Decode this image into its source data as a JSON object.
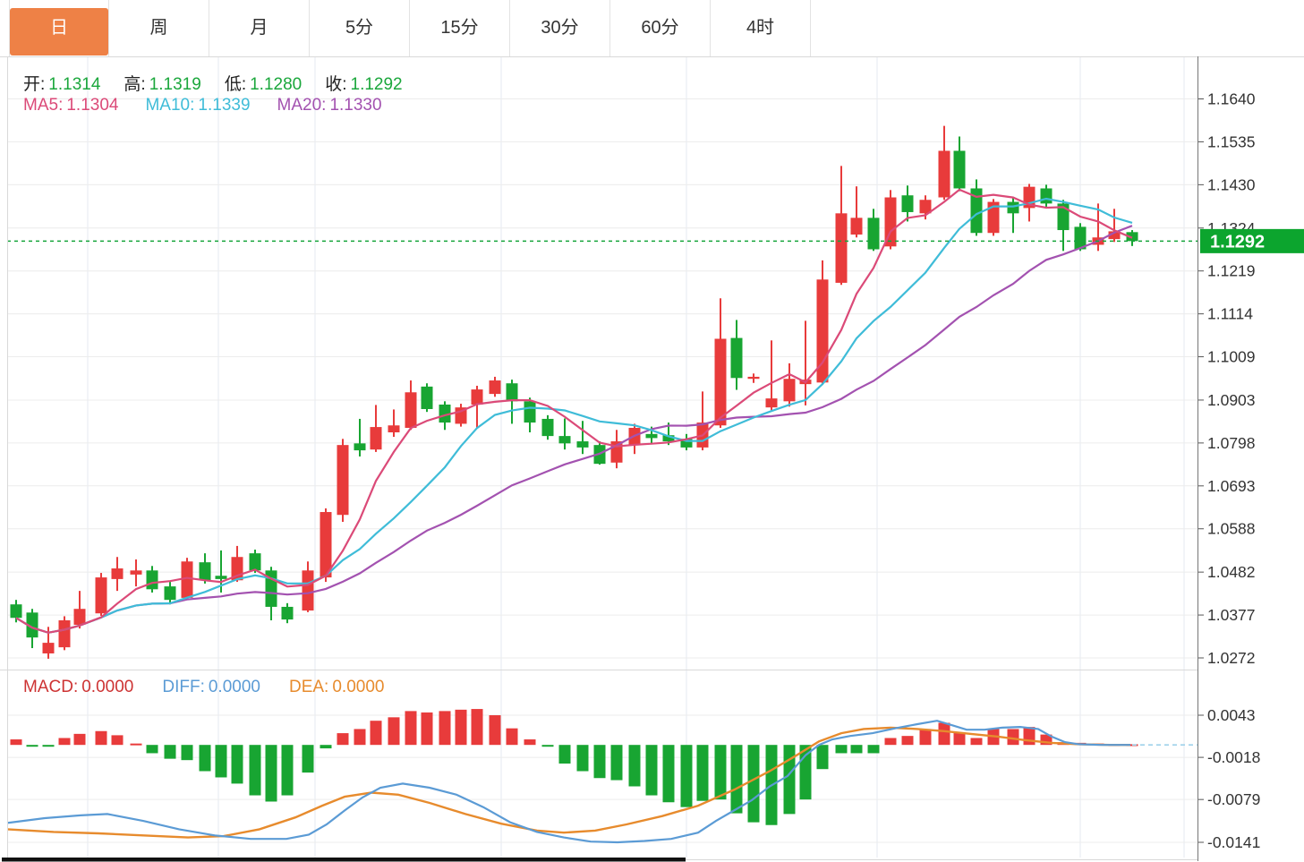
{
  "tabs": {
    "items": [
      {
        "name": "day",
        "label": "日",
        "active": true
      },
      {
        "name": "week",
        "label": "周",
        "active": false
      },
      {
        "name": "month",
        "label": "月",
        "active": false
      },
      {
        "name": "5min",
        "label": "5分",
        "active": false
      },
      {
        "name": "15min",
        "label": "15分",
        "active": false
      },
      {
        "name": "30min",
        "label": "30分",
        "active": false
      },
      {
        "name": "60min",
        "label": "60分",
        "active": false
      },
      {
        "name": "4hour",
        "label": "4时",
        "active": false
      }
    ]
  },
  "ohlc_bar": {
    "open_label": "开:",
    "open": "1.1314",
    "high_label": "高:",
    "high": "1.1319",
    "low_label": "低:",
    "low": "1.1280",
    "close_label": "收:",
    "close": "1.1292"
  },
  "ma_bar": {
    "ma5_label": "MA5:",
    "ma5": "1.1304",
    "ma10_label": "MA10:",
    "ma10": "1.1339",
    "ma20_label": "MA20:",
    "ma20": "1.1330"
  },
  "macd_bar": {
    "macd_label": "MACD:",
    "macd": "0.0000",
    "diff_label": "DIFF:",
    "diff": "0.0000",
    "dea_label": "DEA:",
    "dea": "0.0000"
  },
  "price_axis": {
    "ticks": [
      "1.1640",
      "1.1535",
      "1.1430",
      "1.1324",
      "1.1219",
      "1.1114",
      "1.1009",
      "1.0903",
      "1.0798",
      "1.0693",
      "1.0588",
      "1.0482",
      "1.0377",
      "1.0272"
    ],
    "current_price": "1.1292"
  },
  "macd_axis": {
    "ticks": [
      "0.0043",
      "-0.0018",
      "-0.0079",
      "-0.0141"
    ]
  },
  "colors": {
    "up": "#e83b3b",
    "down": "#18a532",
    "ma5": "#db4a78",
    "ma10": "#3fbcd8",
    "ma20": "#a352b0",
    "diff": "#5b9bd5",
    "dea": "#e78b2d",
    "price_line": "#15a43a",
    "price_tag_bg": "#0ca52e",
    "tab_active_bg": "#ee8146",
    "ohlc_value": "#1ba73c",
    "macd_label": "#cd3333",
    "axis_text": "#333333",
    "grid": "#ececec",
    "vgrid": "#e6eaf1",
    "border": "#d9d9d9",
    "axis_line": "#777777",
    "scroll_thumb": "#111111"
  },
  "chart_data": {
    "type": "candlestick+macd",
    "title": "",
    "price_range": [
      1.0272,
      1.164
    ],
    "price_ticks": [
      1.164,
      1.1535,
      1.143,
      1.1324,
      1.1219,
      1.1114,
      1.1009,
      1.0903,
      1.0798,
      1.0693,
      1.0588,
      1.0482,
      1.0377,
      1.0272
    ],
    "macd_ticks": [
      0.0043,
      -0.0018,
      -0.0079,
      -0.0141
    ],
    "current_price": 1.1292,
    "last_bar": {
      "open": 1.1314,
      "high": 1.1319,
      "low": 1.128,
      "close": 1.1292
    },
    "ma_display": {
      "ma5": 1.1304,
      "ma10": 1.1339,
      "ma20": 1.133
    },
    "ma_periods": [
      5,
      10,
      20
    ],
    "vertical_gridlines": [
      98,
      244,
      352,
      560,
      767,
      980,
      1207,
      1323
    ],
    "candles": [
      [
        18,
        1.0403,
        1.0414,
        1.0359,
        1.037
      ],
      [
        36,
        1.0383,
        1.0392,
        1.0296,
        1.0322
      ],
      [
        54,
        1.0283,
        1.0348,
        1.027,
        1.0309
      ],
      [
        72,
        1.0298,
        1.0374,
        1.0291,
        1.0364
      ],
      [
        89,
        1.0353,
        1.0436,
        1.0344,
        1.0392
      ],
      [
        113,
        1.0381,
        1.048,
        1.0375,
        1.0469
      ],
      [
        131,
        1.0465,
        1.0519,
        1.0436,
        1.0491
      ],
      [
        152,
        1.0476,
        1.0513,
        1.0447,
        1.0486
      ],
      [
        170,
        1.0486,
        1.0497,
        1.0432,
        1.044
      ],
      [
        190,
        1.0447,
        1.0458,
        1.0403,
        1.0414
      ],
      [
        209,
        1.0419,
        1.0517,
        1.0414,
        1.0508
      ],
      [
        229,
        1.0506,
        1.0528,
        1.0454,
        1.0462
      ],
      [
        247,
        1.0473,
        1.0535,
        1.0432,
        1.0465
      ],
      [
        265,
        1.0462,
        1.0546,
        1.0458,
        1.0519
      ],
      [
        285,
        1.0528,
        1.0537,
        1.048,
        1.0486
      ],
      [
        303,
        1.0486,
        1.0495,
        1.0364,
        1.0397
      ],
      [
        321,
        1.0397,
        1.0406,
        1.0357,
        1.0366
      ],
      [
        344,
        1.0388,
        1.0508,
        1.0384,
        1.0486
      ],
      [
        364,
        1.0469,
        1.0638,
        1.0458,
        1.0629
      ],
      [
        383,
        1.0622,
        1.0808,
        1.0605,
        1.0793
      ],
      [
        402,
        1.0797,
        1.0857,
        1.0765,
        1.078
      ],
      [
        420,
        1.0782,
        1.0891,
        1.0776,
        1.0837
      ],
      [
        440,
        1.0824,
        1.088,
        1.0813,
        1.0841
      ],
      [
        459,
        1.0835,
        1.0951,
        1.083,
        1.0922
      ],
      [
        477,
        1.0936,
        1.0944,
        1.0874,
        1.0881
      ],
      [
        497,
        1.0892,
        1.09,
        1.083,
        1.0848
      ],
      [
        515,
        1.0845,
        1.0894,
        1.0838,
        1.0885
      ],
      [
        533,
        1.0892,
        1.0938,
        1.0835,
        1.0929
      ],
      [
        553,
        1.0918,
        1.096,
        1.0911,
        1.0951
      ],
      [
        572,
        1.0944,
        1.0953,
        1.0845,
        1.09
      ],
      [
        592,
        1.09,
        1.0909,
        1.0824,
        1.0848
      ],
      [
        612,
        1.0857,
        1.0866,
        1.0806,
        1.0815
      ],
      [
        631,
        1.0815,
        1.0858,
        1.0782,
        1.0797
      ],
      [
        651,
        1.0802,
        1.0852,
        1.0771,
        1.0787
      ],
      [
        670,
        1.0793,
        1.0802,
        1.0745,
        1.0747
      ],
      [
        689,
        1.075,
        1.083,
        1.0736,
        1.0802
      ],
      [
        709,
        1.0793,
        1.0845,
        1.0771,
        1.0835
      ],
      [
        728,
        1.082,
        1.0838,
        1.0795,
        1.081
      ],
      [
        747,
        1.0817,
        1.0848,
        1.0793,
        1.0802
      ],
      [
        767,
        1.0808,
        1.082,
        1.078,
        1.0787
      ],
      [
        785,
        1.0787,
        1.0924,
        1.078,
        1.0848
      ],
      [
        805,
        1.0841,
        1.1152,
        1.0835,
        1.1053
      ],
      [
        823,
        1.1055,
        1.1099,
        1.0928,
        1.0957
      ],
      [
        842,
        1.0955,
        1.0968,
        1.0945,
        1.096
      ],
      [
        862,
        1.0885,
        1.1049,
        1.0878,
        1.0907
      ],
      [
        882,
        1.09,
        1.0993,
        1.0887,
        1.0955
      ],
      [
        900,
        1.0942,
        1.1097,
        1.089,
        1.0953
      ],
      [
        919,
        1.0946,
        1.1245,
        1.094,
        1.1198
      ],
      [
        940,
        1.119,
        1.1476,
        1.1185,
        1.136
      ],
      [
        957,
        1.1308,
        1.1426,
        1.1301,
        1.1349
      ],
      [
        976,
        1.1349,
        1.1371,
        1.1268,
        1.1272
      ],
      [
        995,
        1.1279,
        1.1417,
        1.1272,
        1.1399
      ],
      [
        1014,
        1.1404,
        1.1428,
        1.134,
        1.1363
      ],
      [
        1034,
        1.136,
        1.1404,
        1.1345,
        1.1393
      ],
      [
        1055,
        1.1399,
        1.1574,
        1.1393,
        1.1513
      ],
      [
        1072,
        1.1513,
        1.1548,
        1.1414,
        1.1421
      ],
      [
        1091,
        1.1421,
        1.1443,
        1.1305,
        1.1312
      ],
      [
        1110,
        1.1312,
        1.1395,
        1.1305,
        1.1388
      ],
      [
        1132,
        1.1388,
        1.1398,
        1.1312,
        1.136
      ],
      [
        1150,
        1.1373,
        1.1432,
        1.134,
        1.1425
      ],
      [
        1169,
        1.1421,
        1.143,
        1.1375,
        1.1384
      ],
      [
        1188,
        1.1384,
        1.1393,
        1.1268,
        1.1319
      ],
      [
        1207,
        1.1327,
        1.1336,
        1.1268,
        1.1272
      ],
      [
        1227,
        1.1283,
        1.1384,
        1.1268,
        1.1301
      ],
      [
        1245,
        1.1297,
        1.1371,
        1.129,
        1.1316
      ],
      [
        1265,
        1.1314,
        1.1319,
        1.128,
        1.1292
      ]
    ],
    "macd_histogram": [
      [
        18,
        0.0008
      ],
      [
        36,
        -0.0002
      ],
      [
        54,
        -0.0002
      ],
      [
        72,
        0.001
      ],
      [
        89,
        0.0016
      ],
      [
        113,
        0.002
      ],
      [
        131,
        0.0014
      ],
      [
        152,
        0.0002
      ],
      [
        170,
        -0.0012
      ],
      [
        190,
        -0.002
      ],
      [
        209,
        -0.0022
      ],
      [
        229,
        -0.0038
      ],
      [
        247,
        -0.0047
      ],
      [
        265,
        -0.0056
      ],
      [
        285,
        -0.0073
      ],
      [
        303,
        -0.0082
      ],
      [
        321,
        -0.0073
      ],
      [
        344,
        -0.004
      ],
      [
        364,
        -0.0005
      ],
      [
        383,
        0.0017
      ],
      [
        402,
        0.0023
      ],
      [
        420,
        0.0035
      ],
      [
        440,
        0.004
      ],
      [
        459,
        0.0049
      ],
      [
        477,
        0.0047
      ],
      [
        497,
        0.0049
      ],
      [
        515,
        0.0051
      ],
      [
        533,
        0.0052
      ],
      [
        553,
        0.0043
      ],
      [
        572,
        0.0024
      ],
      [
        592,
        0.0008
      ],
      [
        612,
        -0.0002
      ],
      [
        631,
        -0.0027
      ],
      [
        651,
        -0.0038
      ],
      [
        670,
        -0.0048
      ],
      [
        689,
        -0.0051
      ],
      [
        709,
        -0.006
      ],
      [
        728,
        -0.0073
      ],
      [
        747,
        -0.0083
      ],
      [
        767,
        -0.009
      ],
      [
        785,
        -0.0081
      ],
      [
        805,
        -0.0079
      ],
      [
        823,
        -0.0099
      ],
      [
        842,
        -0.0112
      ],
      [
        862,
        -0.0116
      ],
      [
        882,
        -0.01
      ],
      [
        900,
        -0.0079
      ],
      [
        919,
        -0.0035
      ],
      [
        940,
        -0.0012
      ],
      [
        957,
        -0.0012
      ],
      [
        976,
        -0.0012
      ],
      [
        995,
        0.001
      ],
      [
        1014,
        0.0013
      ],
      [
        1034,
        0.0023
      ],
      [
        1055,
        0.0032
      ],
      [
        1072,
        0.0018
      ],
      [
        1091,
        0.001
      ],
      [
        1110,
        0.0023
      ],
      [
        1132,
        0.0023
      ],
      [
        1150,
        0.0026
      ],
      [
        1169,
        0.0015
      ],
      [
        1188,
        0.0004
      ],
      [
        1207,
        0.0003
      ],
      [
        1227,
        0.0002
      ],
      [
        1245,
        0.0001
      ],
      [
        1265,
        0.0001
      ]
    ],
    "diff_line": [
      [
        8,
        -0.0113
      ],
      [
        50,
        -0.0106
      ],
      [
        90,
        -0.0102
      ],
      [
        120,
        -0.01
      ],
      [
        160,
        -0.011
      ],
      [
        200,
        -0.0122
      ],
      [
        240,
        -0.0131
      ],
      [
        280,
        -0.0136
      ],
      [
        320,
        -0.0136
      ],
      [
        345,
        -0.013
      ],
      [
        365,
        -0.0115
      ],
      [
        385,
        -0.0095
      ],
      [
        405,
        -0.0076
      ],
      [
        425,
        -0.0062
      ],
      [
        450,
        -0.0056
      ],
      [
        480,
        -0.0062
      ],
      [
        510,
        -0.0072
      ],
      [
        540,
        -0.009
      ],
      [
        570,
        -0.0112
      ],
      [
        600,
        -0.0126
      ],
      [
        630,
        -0.0134
      ],
      [
        660,
        -0.014
      ],
      [
        690,
        -0.0141
      ],
      [
        720,
        -0.0139
      ],
      [
        750,
        -0.0136
      ],
      [
        780,
        -0.0127
      ],
      [
        800,
        -0.011
      ],
      [
        820,
        -0.0095
      ],
      [
        840,
        -0.008
      ],
      [
        860,
        -0.006
      ],
      [
        880,
        -0.0045
      ],
      [
        900,
        -0.0015
      ],
      [
        915,
        0.0
      ],
      [
        930,
        0.0008
      ],
      [
        950,
        0.0013
      ],
      [
        975,
        0.0017
      ],
      [
        1000,
        0.0024
      ],
      [
        1025,
        0.003
      ],
      [
        1047,
        0.0035
      ],
      [
        1065,
        0.0028
      ],
      [
        1080,
        0.0022
      ],
      [
        1100,
        0.0022
      ],
      [
        1120,
        0.0025
      ],
      [
        1140,
        0.0026
      ],
      [
        1160,
        0.0023
      ],
      [
        1175,
        0.0012
      ],
      [
        1190,
        0.0004
      ],
      [
        1205,
        0.0001
      ],
      [
        1230,
        0.0
      ],
      [
        1263,
        0.0
      ]
    ],
    "dea_line": [
      [
        8,
        -0.0122
      ],
      [
        60,
        -0.0126
      ],
      [
        110,
        -0.0128
      ],
      [
        160,
        -0.0131
      ],
      [
        210,
        -0.0134
      ],
      [
        250,
        -0.0132
      ],
      [
        290,
        -0.0122
      ],
      [
        330,
        -0.0105
      ],
      [
        360,
        -0.0088
      ],
      [
        385,
        -0.0075
      ],
      [
        415,
        -0.0069
      ],
      [
        445,
        -0.0072
      ],
      [
        480,
        -0.0084
      ],
      [
        520,
        -0.01
      ],
      [
        560,
        -0.0114
      ],
      [
        600,
        -0.0124
      ],
      [
        630,
        -0.0127
      ],
      [
        665,
        -0.0124
      ],
      [
        700,
        -0.0115
      ],
      [
        740,
        -0.0103
      ],
      [
        780,
        -0.0088
      ],
      [
        820,
        -0.0065
      ],
      [
        860,
        -0.0038
      ],
      [
        890,
        -0.0015
      ],
      [
        915,
        0.0005
      ],
      [
        940,
        0.0017
      ],
      [
        965,
        0.0023
      ],
      [
        995,
        0.0025
      ],
      [
        1025,
        0.0023
      ],
      [
        1055,
        0.002
      ],
      [
        1085,
        0.0016
      ],
      [
        1115,
        0.0012
      ],
      [
        1145,
        0.0007
      ],
      [
        1175,
        0.0003
      ],
      [
        1205,
        0.0001
      ],
      [
        1240,
        0.0
      ],
      [
        1263,
        0.0
      ]
    ]
  }
}
